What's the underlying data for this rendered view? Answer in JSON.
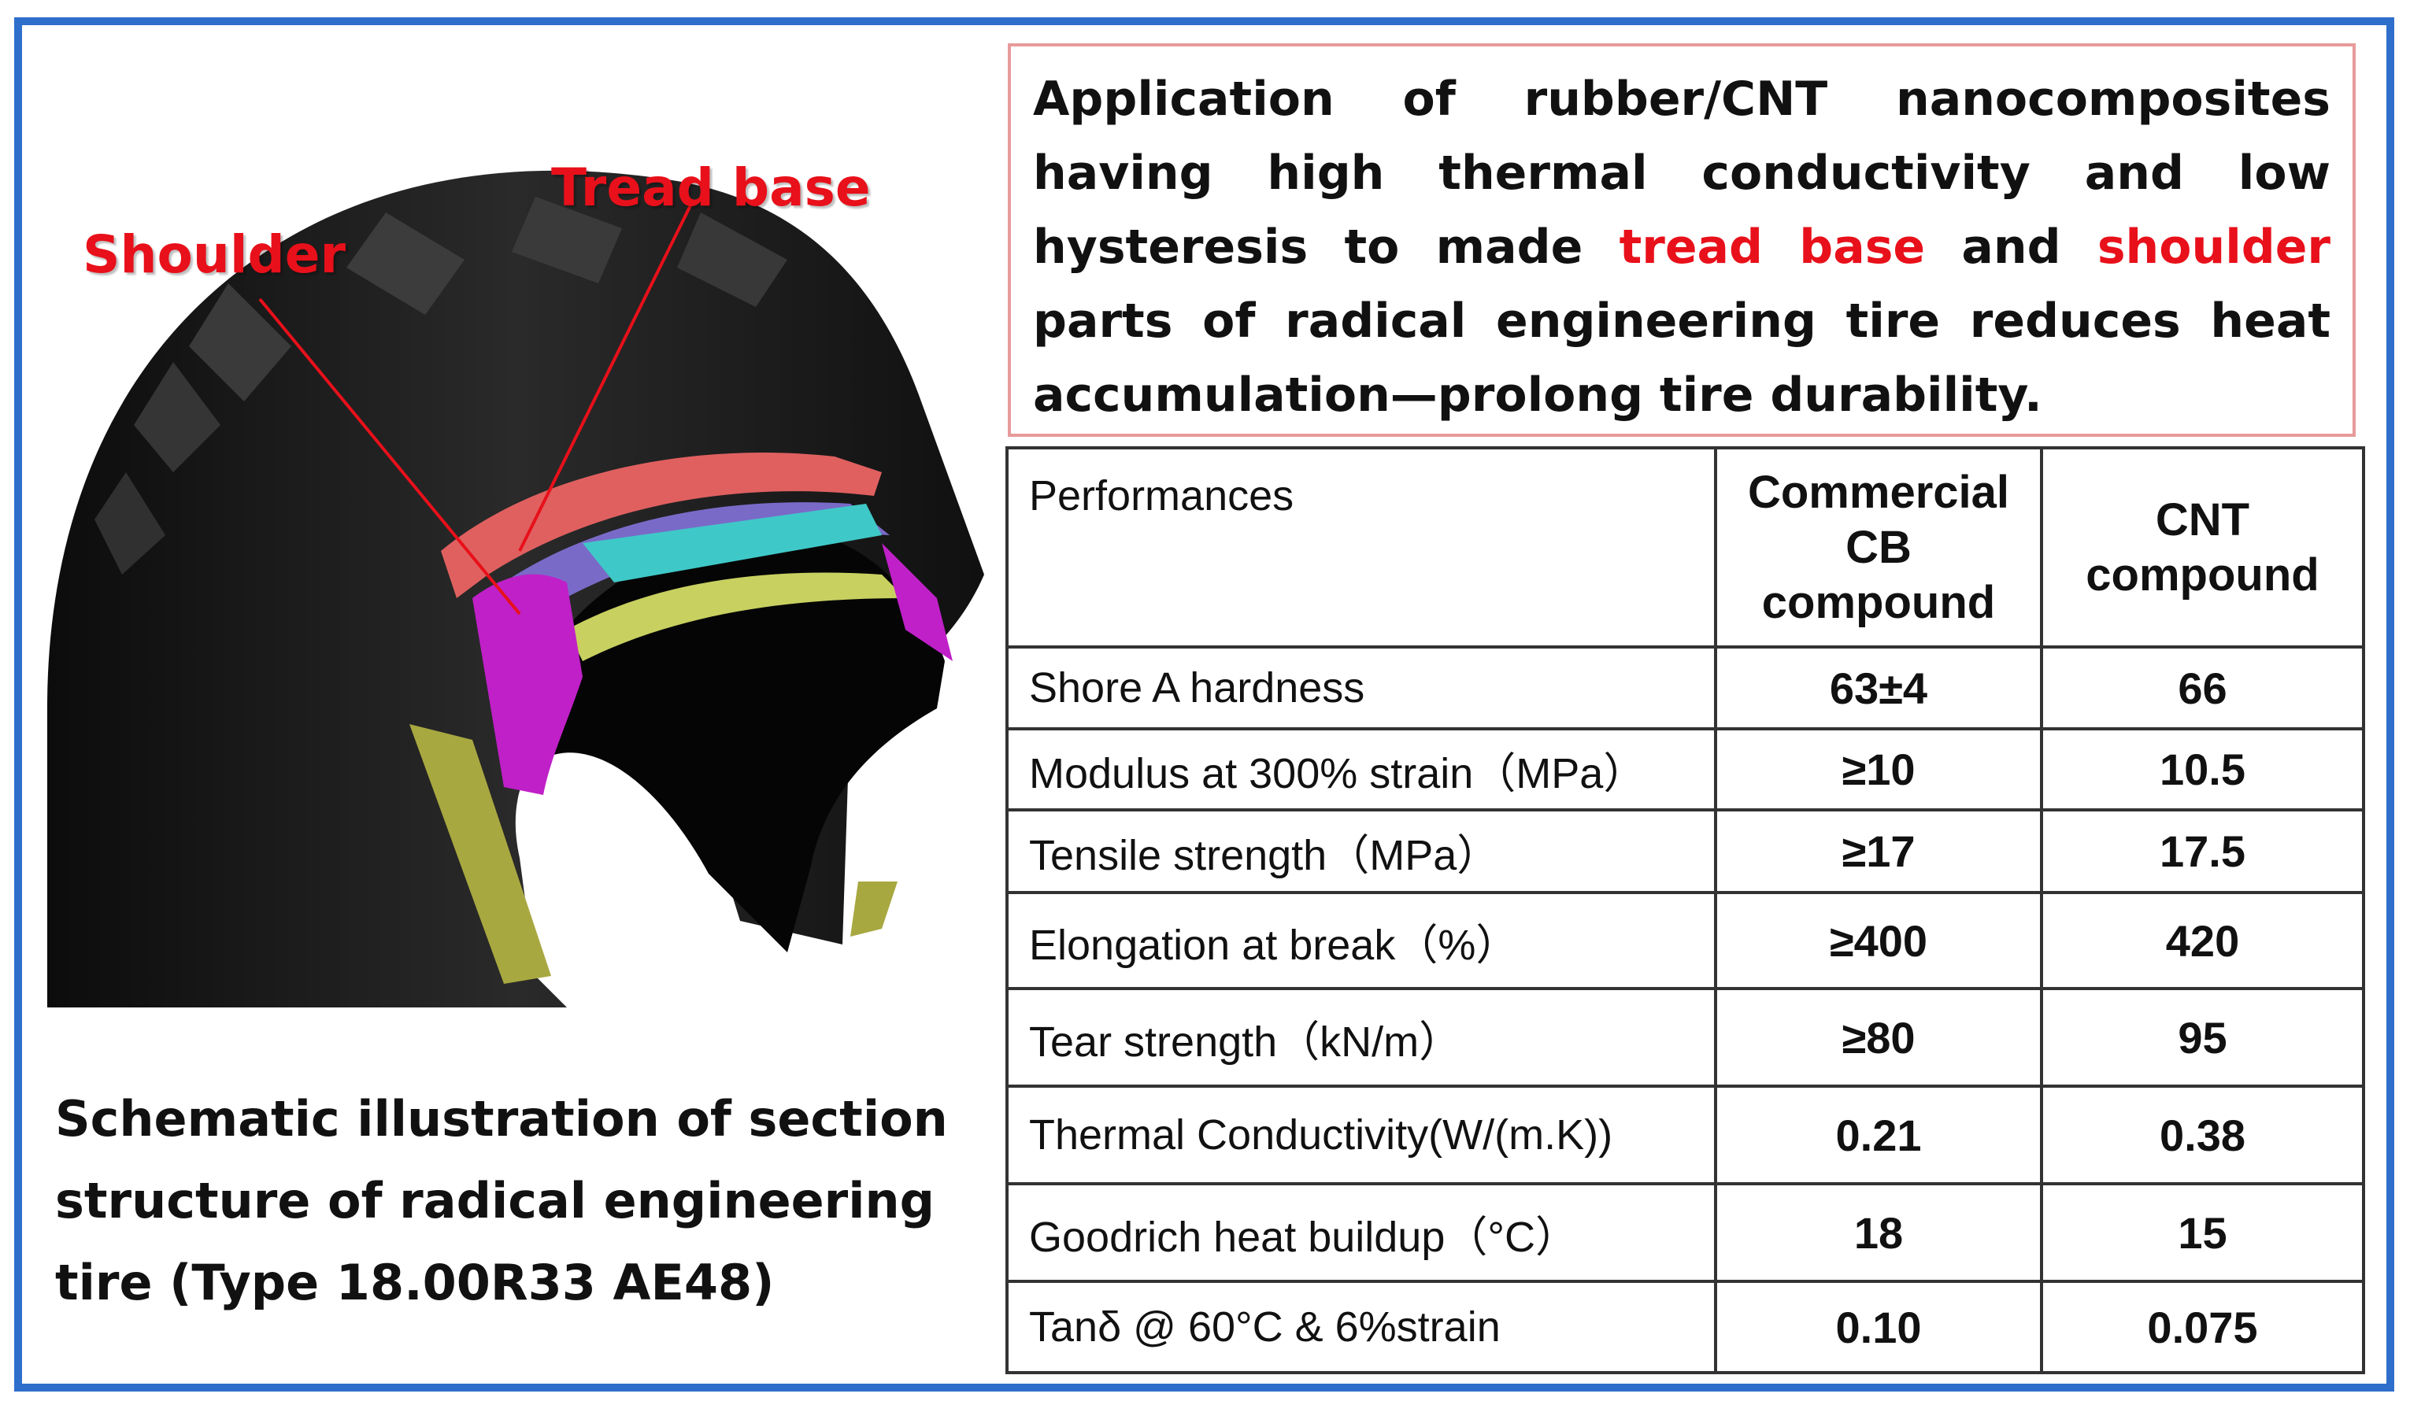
{
  "labels": {
    "tread_base": "Tread base",
    "shoulder": "Shoulder"
  },
  "caption": "Schematic illustration of section structure of radical engineering tire (Type 18.00R33 AE48)",
  "summary": {
    "part1": "Application of rubber/CNT nanocomposites having high thermal conductivity and low hysteresis to made ",
    "highlight1": "tread base",
    "part2": " and ",
    "highlight2": "shoulder",
    "part3": " parts of radical engineering tire reduces heat accumulation—prolong tire durability."
  },
  "table": {
    "headers": [
      "Performances",
      "Commercial CB compound",
      "CNT compound"
    ],
    "rows": [
      {
        "name": "Shore A hardness",
        "cb": "63±4",
        "cnt": "66"
      },
      {
        "name": "Modulus at 300% strain（MPa）",
        "cb": "≥10",
        "cnt": "10.5"
      },
      {
        "name": "Tensile strength（MPa）",
        "cb": "≥17",
        "cnt": "17.5"
      },
      {
        "name": "Elongation at break（%）",
        "cb": "≥400",
        "cnt": "420"
      },
      {
        "name": "Tear strength（kN/m）",
        "cb": "≥80",
        "cnt": "95"
      },
      {
        "name": "Thermal Conductivity(W/(m.K))",
        "cb": "0.21",
        "cnt": "0.38"
      },
      {
        "name": "Goodrich heat buildup（°C）",
        "cb": "18",
        "cnt": "15"
      },
      {
        "name": "Tanδ @ 60°C & 6%strain",
        "cb": "0.10",
        "cnt": "0.075"
      }
    ]
  },
  "colors": {
    "frame": "#2f6fcc",
    "highlight": "#e8101a",
    "tread_base_layer": "#e06060",
    "shoulder_layer": "#c020c8",
    "belt_layer": "#7a6ac8",
    "cyan_layer": "#3fc8c8",
    "ply_layer": "#c8d060"
  }
}
